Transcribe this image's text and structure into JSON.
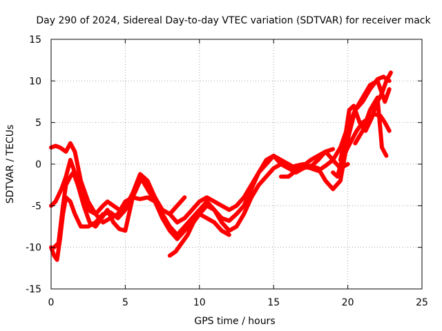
{
  "chart_data": {
    "type": "scatter",
    "title": "Day 290 of 2024, Sidereal Day-to-day VTEC variation (SDTVAR) for receiver mack",
    "xlabel": "GPS time / hours",
    "ylabel": "SDTVAR / TECUs",
    "xlim": [
      0,
      25
    ],
    "ylim": [
      -15,
      15
    ],
    "x_ticks": [
      "0",
      "5",
      "10",
      "15",
      "20",
      "25"
    ],
    "y_ticks": [
      "-15",
      "-10",
      "-5",
      "0",
      "5",
      "10",
      "15"
    ],
    "grid": true,
    "marker": "+",
    "color": "#ff0000",
    "series": [
      {
        "name": "trace-1",
        "x": [
          0.0,
          0.3,
          0.7,
          1.0,
          1.3,
          1.6,
          2.0,
          2.5,
          3.0,
          3.5,
          3.8,
          4.2,
          4.6,
          5.0,
          5.5,
          6.0,
          6.5,
          7.0,
          7.5,
          8.0,
          8.5,
          9.0,
          9.5,
          10.0,
          10.5,
          11.0,
          11.5,
          12.0,
          12.5,
          13.0,
          13.5,
          14.0,
          14.5,
          15.0,
          15.5,
          16.0,
          16.5,
          17.0,
          17.5,
          18.0,
          18.5,
          19.0,
          19.5,
          20.0
        ],
        "y": [
          -5.0,
          -4.5,
          -3.0,
          -1.5,
          0.5,
          -1.0,
          -3.5,
          -5.5,
          -6.0,
          -5.0,
          -4.5,
          -5.0,
          -5.5,
          -5.2,
          -3.5,
          -1.2,
          -2.0,
          -4.0,
          -6.0,
          -7.5,
          -8.5,
          -7.5,
          -6.5,
          -5.5,
          -4.5,
          -5.5,
          -6.5,
          -6.8,
          -6.0,
          -5.0,
          -3.0,
          -1.0,
          0.5,
          1.0,
          0.0,
          -0.5,
          -0.2,
          0.0,
          -0.3,
          0.5,
          1.5,
          0.5,
          -0.5,
          0.0
        ]
      },
      {
        "name": "trace-2",
        "x": [
          0.0,
          0.3,
          0.6,
          1.0,
          1.3,
          1.6,
          2.0,
          2.5,
          3.0,
          3.5,
          4.0,
          4.5,
          5.0,
          5.5,
          6.0,
          6.5,
          7.0,
          7.5,
          8.0,
          8.5,
          9.0,
          9.5,
          10.0,
          10.5,
          11.0,
          11.5,
          12.0,
          12.5,
          13.0,
          13.5,
          14.0,
          14.5,
          15.0,
          15.5,
          16.0,
          16.5,
          17.0,
          17.5,
          18.0,
          18.5,
          19.0
        ],
        "y": [
          2.0,
          2.2,
          2.0,
          1.5,
          2.5,
          1.5,
          -2.0,
          -4.5,
          -6.0,
          -7.0,
          -6.5,
          -6.0,
          -4.5,
          -4.0,
          -4.2,
          -4.0,
          -4.5,
          -5.5,
          -6.0,
          -7.0,
          -6.5,
          -5.5,
          -4.5,
          -4.0,
          -4.5,
          -5.0,
          -5.5,
          -5.0,
          -4.0,
          -2.5,
          -1.0,
          0.0,
          1.0,
          0.5,
          0.0,
          -0.5,
          -0.2,
          0.5,
          1.0,
          1.5,
          1.8
        ]
      },
      {
        "name": "trace-3",
        "x": [
          0.2,
          0.5,
          0.8,
          1.0,
          1.3,
          1.5,
          1.8,
          2.2,
          2.6,
          3.0,
          3.4,
          3.8,
          4.2,
          4.6,
          5.0,
          5.5,
          6.0,
          6.5,
          7.0,
          7.5,
          8.0,
          8.5,
          9.0
        ],
        "y": [
          -10.0,
          -9.5,
          -5.0,
          -2.5,
          -1.5,
          -1.0,
          -2.5,
          -5.0,
          -7.0,
          -7.5,
          -6.5,
          -5.5,
          -7.0,
          -7.8,
          -8.0,
          -4.0,
          -2.0,
          -2.2,
          -4.0,
          -5.5,
          -6.0,
          -5.0,
          -4.0
        ]
      },
      {
        "name": "trace-4",
        "x": [
          0.0,
          0.2,
          0.4,
          0.6,
          0.8,
          1.0,
          1.3,
          1.6,
          2.0,
          2.5,
          3.0,
          3.5,
          4.0,
          4.5,
          5.0,
          5.5,
          6.0,
          6.5,
          7.0,
          7.5,
          8.0,
          8.5,
          9.0,
          9.5,
          10.0,
          10.5,
          11.0,
          11.5,
          12.0
        ],
        "y": [
          -10.0,
          -11.0,
          -11.5,
          -9.0,
          -6.0,
          -4.0,
          -4.5,
          -6.0,
          -7.5,
          -7.5,
          -7.0,
          -6.0,
          -5.8,
          -6.5,
          -5.5,
          -4.0,
          -1.5,
          -3.0,
          -4.5,
          -6.5,
          -8.0,
          -9.0,
          -8.0,
          -7.0,
          -6.0,
          -6.5,
          -7.0,
          -8.0,
          -8.5
        ]
      },
      {
        "name": "trace-5",
        "x": [
          8.0,
          8.4,
          8.8,
          9.2,
          9.6,
          10.0,
          10.5,
          11.0,
          11.5,
          12.0,
          12.5,
          13.0,
          13.5,
          14.0,
          14.5,
          15.0,
          15.5,
          16.0,
          16.5,
          17.0,
          17.5,
          18.0,
          18.5,
          19.0,
          19.5,
          20.0,
          20.5,
          21.0,
          21.5,
          22.0,
          22.5,
          22.8
        ],
        "y": [
          -11.0,
          -10.5,
          -9.5,
          -8.5,
          -7.0,
          -6.0,
          -5.0,
          -5.5,
          -7.0,
          -8.0,
          -7.5,
          -6.0,
          -4.0,
          -2.5,
          -1.5,
          -0.5,
          0.0,
          -0.5,
          -1.0,
          -0.5,
          -0.2,
          -0.5,
          -2.0,
          -3.0,
          -2.0,
          3.0,
          6.5,
          8.0,
          9.5,
          10.0,
          7.5,
          9.0
        ]
      },
      {
        "name": "trace-6",
        "x": [
          15.5,
          16.0,
          16.5,
          17.0,
          17.5,
          18.0,
          18.5,
          19.0,
          19.5,
          20.0,
          20.5,
          21.0,
          21.5,
          22.0,
          22.4,
          22.8
        ],
        "y": [
          -1.5,
          -1.5,
          -0.8,
          -0.3,
          -0.5,
          -0.8,
          -0.2,
          0.5,
          2.0,
          4.5,
          6.5,
          7.5,
          9.0,
          10.2,
          10.5,
          10.0
        ]
      },
      {
        "name": "trace-7",
        "x": [
          19.0,
          19.3,
          19.6,
          20.0,
          20.3,
          20.6,
          21.0,
          21.4,
          21.8,
          22.2,
          22.5,
          22.8
        ],
        "y": [
          -1.0,
          -1.5,
          0.5,
          2.0,
          3.0,
          4.0,
          5.0,
          5.5,
          6.0,
          5.8,
          5.0,
          4.0
        ]
      },
      {
        "name": "trace-8",
        "x": [
          19.5,
          19.8,
          20.1,
          20.4,
          20.8,
          21.2,
          21.6,
          22.0,
          22.3,
          22.6,
          22.9
        ],
        "y": [
          0.5,
          3.0,
          6.5,
          7.0,
          5.0,
          4.0,
          5.5,
          7.5,
          8.5,
          10.0,
          11.0
        ]
      },
      {
        "name": "trace-9",
        "x": [
          20.5,
          21.0,
          21.5,
          22.0,
          22.3,
          22.6
        ],
        "y": [
          2.5,
          4.0,
          6.5,
          8.0,
          2.0,
          1.0
        ]
      }
    ]
  }
}
